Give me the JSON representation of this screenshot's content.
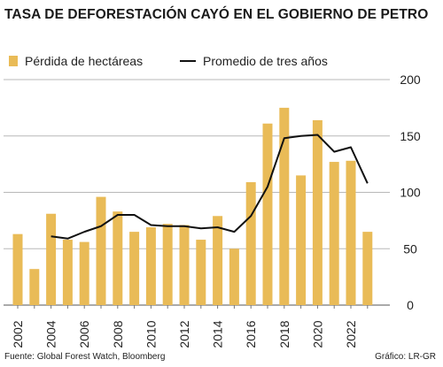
{
  "title": "TASA DE DEFORESTACIÓN CAYÓ EN EL GOBIERNO DE PETRO",
  "source": "Fuente: Global Forest Watch, Bloomberg",
  "credit": "Gráfico: LR-GR",
  "colors": {
    "bar": "#e9bb57",
    "line": "#111111",
    "grid": "#b8b8b8"
  },
  "chart_data": {
    "type": "bar",
    "title": "TASA DE DEFORESTACIÓN CAYÓ EN EL GOBIERNO DE PETRO",
    "xlabel": "",
    "ylabel": "",
    "ylim": [
      0,
      200
    ],
    "yticks": [
      0,
      50,
      100,
      150,
      200
    ],
    "grid": true,
    "legend_position": "top",
    "x": [
      2002,
      2003,
      2004,
      2005,
      2006,
      2007,
      2008,
      2009,
      2010,
      2011,
      2012,
      2013,
      2014,
      2015,
      2016,
      2017,
      2018,
      2019,
      2020,
      2021,
      2022,
      2023
    ],
    "x_tick_labels": [
      "2002",
      "2004",
      "2006",
      "2008",
      "2010",
      "2012",
      "2014",
      "2016",
      "2018",
      "2020",
      "2022"
    ],
    "series": [
      {
        "name": "Pérdida de hectáreas",
        "type": "bar",
        "values": [
          63,
          32,
          81,
          58,
          56,
          96,
          83,
          65,
          69,
          72,
          71,
          58,
          79,
          50,
          109,
          161,
          175,
          115,
          164,
          127,
          128,
          65
        ]
      },
      {
        "name": "Promedio de tres años",
        "type": "line",
        "values": [
          null,
          null,
          61,
          59,
          65,
          70,
          80,
          80,
          71,
          70,
          70,
          68,
          69,
          65,
          79,
          105,
          148,
          150,
          151,
          136,
          140,
          108
        ]
      }
    ]
  }
}
